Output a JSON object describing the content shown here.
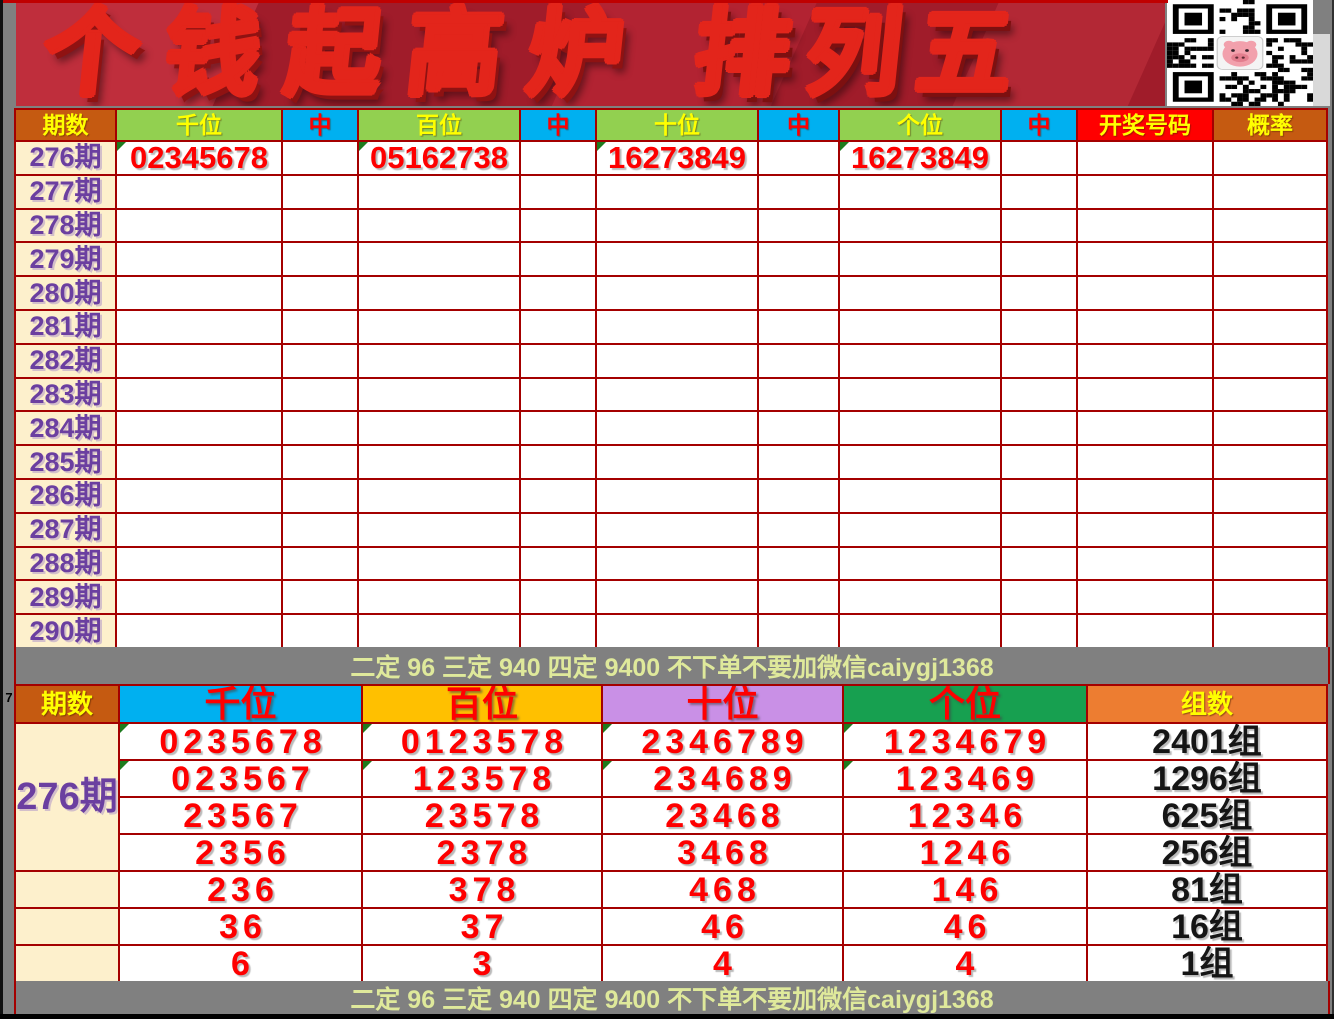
{
  "banner": {
    "title_left": "个钱起高炉",
    "title_right": "排列五"
  },
  "sheet": {
    "row_label": "7"
  },
  "notice": {
    "text": "二定 96 三定 940 四定 9400 不下单不要加微信caiygj1368"
  },
  "colors": {
    "border": "#A40000",
    "header_brown": "#C55A11",
    "header_green": "#92D050",
    "header_cyan": "#00B0F0",
    "header_red": "#FF0000",
    "header_orange": "#FFC000",
    "header_purple": "#C990E6",
    "header_deepgreen": "#17A050",
    "header_light_orange": "#ED7D31",
    "period_text": "#6B3FA0",
    "number_text": "#FE0000",
    "cream": "#FDF0CC",
    "bar_text": "#DFE99B"
  },
  "table1": {
    "headers": [
      {
        "label": "期数",
        "bg": "#C55A11",
        "fg": "#FFFF00",
        "name": "period"
      },
      {
        "label": "千位",
        "bg": "#92D050",
        "fg": "#FFFF00",
        "name": "thousands"
      },
      {
        "label": "中",
        "bg": "#00B0F0",
        "fg": "#FF0000",
        "name": "hit-thousands"
      },
      {
        "label": "百位",
        "bg": "#92D050",
        "fg": "#FFFF00",
        "name": "hundreds"
      },
      {
        "label": "中",
        "bg": "#00B0F0",
        "fg": "#FF0000",
        "name": "hit-hundreds"
      },
      {
        "label": "十位",
        "bg": "#92D050",
        "fg": "#FFFF00",
        "name": "tens"
      },
      {
        "label": "中",
        "bg": "#00B0F0",
        "fg": "#FF0000",
        "name": "hit-tens"
      },
      {
        "label": "个位",
        "bg": "#92D050",
        "fg": "#FFFF00",
        "name": "units"
      },
      {
        "label": "中",
        "bg": "#00B0F0",
        "fg": "#FF0000",
        "name": "hit-units"
      },
      {
        "label": "开奖号码",
        "bg": "#FF0000",
        "fg": "#FFFF00",
        "name": "draw-number"
      },
      {
        "label": "概率",
        "bg": "#C55A11",
        "fg": "#FFFF00",
        "name": "probability"
      }
    ],
    "rows": [
      {
        "period": "276期",
        "cells": [
          "02345678",
          "",
          "05162738",
          "",
          "16273849",
          "",
          "16273849",
          "",
          "",
          ""
        ]
      },
      {
        "period": "277期",
        "cells": [
          "",
          "",
          "",
          "",
          "",
          "",
          "",
          "",
          "",
          ""
        ]
      },
      {
        "period": "278期",
        "cells": [
          "",
          "",
          "",
          "",
          "",
          "",
          "",
          "",
          "",
          ""
        ]
      },
      {
        "period": "279期",
        "cells": [
          "",
          "",
          "",
          "",
          "",
          "",
          "",
          "",
          "",
          ""
        ]
      },
      {
        "period": "280期",
        "cells": [
          "",
          "",
          "",
          "",
          "",
          "",
          "",
          "",
          "",
          ""
        ]
      },
      {
        "period": "281期",
        "cells": [
          "",
          "",
          "",
          "",
          "",
          "",
          "",
          "",
          "",
          ""
        ]
      },
      {
        "period": "282期",
        "cells": [
          "",
          "",
          "",
          "",
          "",
          "",
          "",
          "",
          "",
          ""
        ]
      },
      {
        "period": "283期",
        "cells": [
          "",
          "",
          "",
          "",
          "",
          "",
          "",
          "",
          "",
          ""
        ]
      },
      {
        "period": "284期",
        "cells": [
          "",
          "",
          "",
          "",
          "",
          "",
          "",
          "",
          "",
          ""
        ]
      },
      {
        "period": "285期",
        "cells": [
          "",
          "",
          "",
          "",
          "",
          "",
          "",
          "",
          "",
          ""
        ]
      },
      {
        "period": "286期",
        "cells": [
          "",
          "",
          "",
          "",
          "",
          "",
          "",
          "",
          "",
          ""
        ]
      },
      {
        "period": "287期",
        "cells": [
          "",
          "",
          "",
          "",
          "",
          "",
          "",
          "",
          "",
          ""
        ]
      },
      {
        "period": "288期",
        "cells": [
          "",
          "",
          "",
          "",
          "",
          "",
          "",
          "",
          "",
          ""
        ]
      },
      {
        "period": "289期",
        "cells": [
          "",
          "",
          "",
          "",
          "",
          "",
          "",
          "",
          "",
          ""
        ]
      },
      {
        "period": "290期",
        "cells": [
          "",
          "",
          "",
          "",
          "",
          "",
          "",
          "",
          "",
          ""
        ]
      }
    ]
  },
  "table2": {
    "headers": [
      {
        "label": "期数",
        "bg": "#C55A11",
        "fg": "#FFFF00",
        "name": "period"
      },
      {
        "label": "千位",
        "bg": "#00B0F0",
        "fg": "#FF0000",
        "name": "thousands"
      },
      {
        "label": "百位",
        "bg": "#FFC000",
        "fg": "#FF0000",
        "name": "hundreds"
      },
      {
        "label": "十位",
        "bg": "#C990E6",
        "fg": "#FF0000",
        "name": "tens"
      },
      {
        "label": "个位",
        "bg": "#17A050",
        "fg": "#FF0000",
        "name": "units"
      },
      {
        "label": "组数",
        "bg": "#ED7D31",
        "fg": "#FFFF00",
        "name": "group-count"
      }
    ],
    "period": "276期",
    "period_rowspan": 4,
    "rows": [
      {
        "digits": [
          "0235678",
          "0123578",
          "2346789",
          "1234679"
        ],
        "groups": "2401组",
        "marked": true
      },
      {
        "digits": [
          "023567",
          "123578",
          "234689",
          "123469"
        ],
        "groups": "1296组",
        "marked": true
      },
      {
        "digits": [
          "23567",
          "23578",
          "23468",
          "12346"
        ],
        "groups": "625组",
        "marked": false
      },
      {
        "digits": [
          "2356",
          "2378",
          "3468",
          "1246"
        ],
        "groups": "256组",
        "marked": false
      },
      {
        "digits": [
          "236",
          "378",
          "468",
          "146"
        ],
        "groups": "81组",
        "marked": false
      },
      {
        "digits": [
          "36",
          "37",
          "46",
          "46"
        ],
        "groups": "16组",
        "marked": false
      },
      {
        "digits": [
          "6",
          "3",
          "4",
          "4"
        ],
        "groups": "1组",
        "marked": false
      }
    ]
  }
}
